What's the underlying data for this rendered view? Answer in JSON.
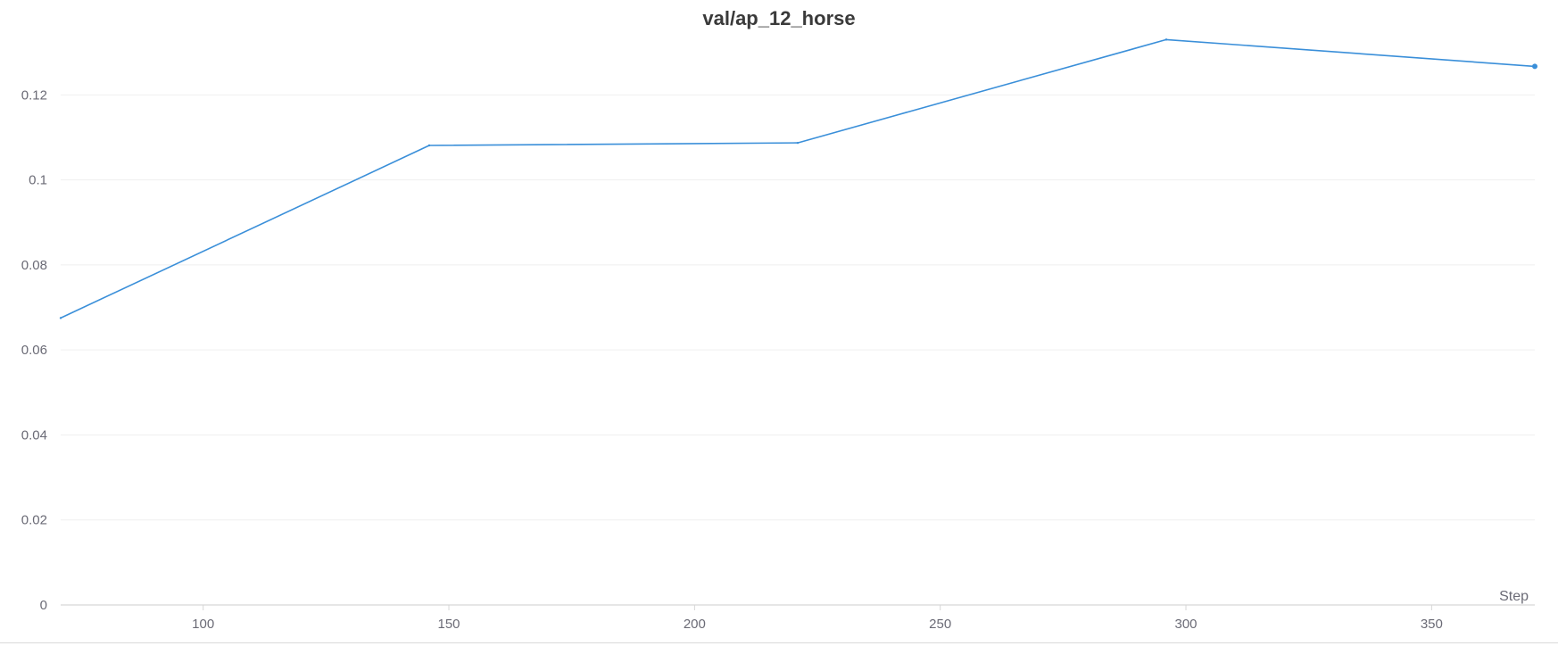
{
  "chart_data": {
    "type": "line",
    "title": "val/ap_12_horse",
    "xlabel": "Step",
    "ylabel": "",
    "xlim": [
      71,
      371
    ],
    "ylim": [
      0,
      0.1335
    ],
    "x_ticks": [
      100,
      150,
      200,
      250,
      300,
      350
    ],
    "x_tick_labels": [
      "100",
      "150",
      "200",
      "250",
      "300",
      "350"
    ],
    "y_ticks": [
      0,
      0.02,
      0.04,
      0.06,
      0.08,
      0.1,
      0.12
    ],
    "y_tick_labels": [
      "0",
      "0.02",
      "0.04",
      "0.06",
      "0.08",
      "0.1",
      "0.12"
    ],
    "grid": true,
    "series": [
      {
        "color": "#3a8fd9",
        "x": [
          71,
          146,
          221,
          296,
          371
        ],
        "y": [
          0.0675,
          0.1081,
          0.1087,
          0.133,
          0.1267
        ],
        "end_marker": true
      }
    ]
  }
}
